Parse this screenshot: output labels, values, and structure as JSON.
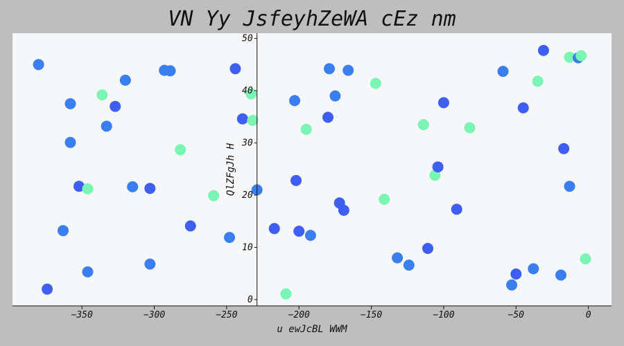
{
  "chart_data": {
    "type": "scatter",
    "title": "VN Yy JsfeyhZeWA cEz nm",
    "xlabel": "u ewJcBL WWM",
    "ylabel": "QlZFgJh H",
    "xlim": [
      -398,
      16
    ],
    "ylim": [
      -1.2,
      51
    ],
    "xticks": [
      -350,
      -300,
      -250,
      -200,
      -150,
      -100,
      -50,
      0
    ],
    "yticks": [
      0,
      10,
      20,
      30,
      40,
      50
    ],
    "grid": false,
    "background": "#f5f7f8",
    "colors": {
      "blue_a": "#3f5ef2",
      "blue_b": "#3b7ef0",
      "green": "#7bf5b3"
    },
    "points": [
      {
        "x": -380,
        "y": 45,
        "c": "blue_b"
      },
      {
        "x": -358,
        "y": 37.5,
        "c": "blue_b"
      },
      {
        "x": -327,
        "y": 37,
        "c": "blue_a"
      },
      {
        "x": -336,
        "y": 39.2,
        "c": "green"
      },
      {
        "x": -320,
        "y": 42,
        "c": "blue_b"
      },
      {
        "x": -333,
        "y": 33.2,
        "c": "blue_b"
      },
      {
        "x": -358,
        "y": 30.1,
        "c": "blue_b"
      },
      {
        "x": -352,
        "y": 21.7,
        "c": "blue_a"
      },
      {
        "x": -346,
        "y": 21.2,
        "c": "green"
      },
      {
        "x": -315,
        "y": 21.6,
        "c": "blue_b"
      },
      {
        "x": -303,
        "y": 21.3,
        "c": "blue_a"
      },
      {
        "x": -363,
        "y": 13.2,
        "c": "blue_b"
      },
      {
        "x": -374,
        "y": 2,
        "c": "blue_a"
      },
      {
        "x": -346,
        "y": 5.3,
        "c": "blue_b"
      },
      {
        "x": -303,
        "y": 6.8,
        "c": "blue_b"
      },
      {
        "x": -293,
        "y": 43.9,
        "c": "blue_b"
      },
      {
        "x": -289,
        "y": 43.8,
        "c": "blue_b"
      },
      {
        "x": -282,
        "y": 28.7,
        "c": "green"
      },
      {
        "x": -275,
        "y": 14.1,
        "c": "blue_a"
      },
      {
        "x": -259,
        "y": 19.9,
        "c": "green"
      },
      {
        "x": -248,
        "y": 11.9,
        "c": "blue_b"
      },
      {
        "x": -244,
        "y": 44.2,
        "c": "blue_a"
      },
      {
        "x": -239,
        "y": 34.6,
        "c": "blue_a"
      },
      {
        "x": -233,
        "y": 39.4,
        "c": "green"
      },
      {
        "x": -232,
        "y": 34.3,
        "c": "green"
      },
      {
        "x": -229,
        "y": 21,
        "c": "blue_b"
      },
      {
        "x": -217,
        "y": 13.6,
        "c": "blue_a"
      },
      {
        "x": -209,
        "y": 1.1,
        "c": "green"
      },
      {
        "x": -203,
        "y": 38.1,
        "c": "blue_b"
      },
      {
        "x": -202,
        "y": 22.8,
        "c": "blue_a"
      },
      {
        "x": -200,
        "y": 13.1,
        "c": "blue_a"
      },
      {
        "x": -195,
        "y": 32.6,
        "c": "green"
      },
      {
        "x": -192,
        "y": 12.3,
        "c": "blue_b"
      },
      {
        "x": -180,
        "y": 34.9,
        "c": "blue_a"
      },
      {
        "x": -179,
        "y": 44.2,
        "c": "blue_b"
      },
      {
        "x": -175,
        "y": 39,
        "c": "blue_b"
      },
      {
        "x": -172,
        "y": 18.5,
        "c": "blue_a"
      },
      {
        "x": -169,
        "y": 17.1,
        "c": "blue_a"
      },
      {
        "x": -166,
        "y": 43.9,
        "c": "blue_b"
      },
      {
        "x": -147,
        "y": 41.4,
        "c": "green"
      },
      {
        "x": -141,
        "y": 19.2,
        "c": "green"
      },
      {
        "x": -132,
        "y": 8,
        "c": "blue_b"
      },
      {
        "x": -124,
        "y": 6.6,
        "c": "blue_b"
      },
      {
        "x": -114,
        "y": 33.5,
        "c": "green"
      },
      {
        "x": -111,
        "y": 9.8,
        "c": "blue_a"
      },
      {
        "x": -106,
        "y": 23.8,
        "c": "green"
      },
      {
        "x": -104,
        "y": 25.4,
        "c": "blue_a"
      },
      {
        "x": -100,
        "y": 37.7,
        "c": "blue_a"
      },
      {
        "x": -91,
        "y": 17.3,
        "c": "blue_a"
      },
      {
        "x": -82,
        "y": 32.9,
        "c": "green"
      },
      {
        "x": -59,
        "y": 43.7,
        "c": "blue_b"
      },
      {
        "x": -53,
        "y": 2.8,
        "c": "blue_b"
      },
      {
        "x": -50,
        "y": 4.9,
        "c": "blue_a"
      },
      {
        "x": -45,
        "y": 36.7,
        "c": "blue_a"
      },
      {
        "x": -38,
        "y": 5.9,
        "c": "blue_b"
      },
      {
        "x": -35,
        "y": 41.8,
        "c": "green"
      },
      {
        "x": -31,
        "y": 47.7,
        "c": "blue_a"
      },
      {
        "x": -19,
        "y": 4.7,
        "c": "blue_b"
      },
      {
        "x": -17,
        "y": 28.9,
        "c": "blue_a"
      },
      {
        "x": -13,
        "y": 21.7,
        "c": "blue_b"
      },
      {
        "x": -13,
        "y": 46.4,
        "c": "green"
      },
      {
        "x": -7,
        "y": 46.3,
        "c": "blue_b"
      },
      {
        "x": -5,
        "y": 46.7,
        "c": "green"
      },
      {
        "x": -2,
        "y": 7.8,
        "c": "green"
      }
    ]
  }
}
